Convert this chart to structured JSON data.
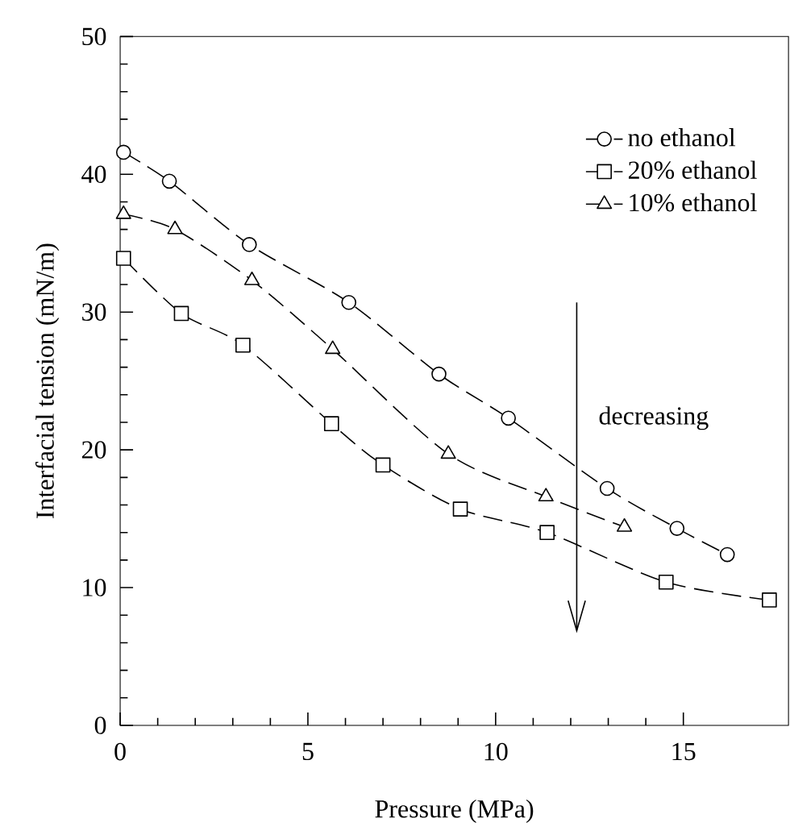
{
  "chart_data": {
    "type": "line",
    "xlabel": "Pressure (MPa)",
    "ylabel": "Interfacial tension (mN/m)",
    "xlim": [
      0,
      17.8
    ],
    "ylim": [
      0,
      50
    ],
    "xticks": [
      0,
      5,
      10,
      15
    ],
    "yticks": [
      0,
      10,
      20,
      30,
      40,
      50
    ],
    "legend": "top right",
    "line_style": "dashed",
    "grid": false,
    "annotations": [
      "decreasing"
    ],
    "series": [
      {
        "name": "no ethanol",
        "color": "#000000",
        "marker": "circle",
        "x": [
          0.09,
          1.31,
          3.44,
          6.09,
          8.49,
          10.34,
          12.97,
          14.83,
          16.17
        ],
        "values": [
          41.6,
          39.5,
          34.9,
          30.7,
          25.5,
          22.3,
          17.2,
          14.3,
          12.4
        ]
      },
      {
        "name": "20% ethanol",
        "color": "#000000",
        "marker": "square",
        "x": [
          0.09,
          1.63,
          3.27,
          5.63,
          7.0,
          9.06,
          11.37,
          14.54,
          17.29
        ],
        "values": [
          33.9,
          29.9,
          27.6,
          21.9,
          18.9,
          15.7,
          14.0,
          10.4,
          9.1
        ]
      },
      {
        "name": "10% ethanol",
        "color": "#000000",
        "marker": "triangle",
        "x": [
          0.09,
          1.46,
          3.51,
          5.66,
          8.74,
          11.34,
          13.43
        ],
        "values": [
          37.1,
          36.0,
          32.3,
          27.3,
          19.7,
          16.6,
          14.4
        ]
      }
    ]
  }
}
